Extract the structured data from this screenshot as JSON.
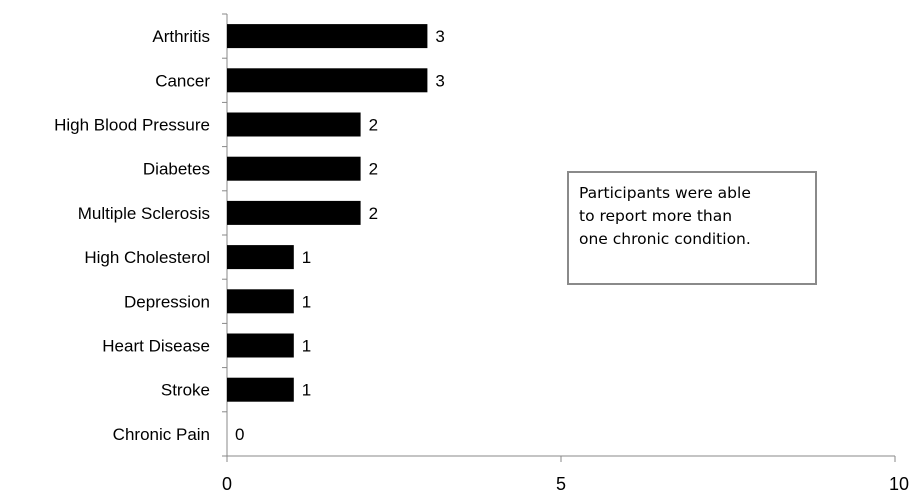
{
  "chart_data": {
    "type": "bar",
    "orientation": "horizontal",
    "categories": [
      "Arthritis",
      "Cancer",
      "High Blood Pressure",
      "Diabetes",
      "Multiple Sclerosis",
      "High Cholesterol",
      "Depression",
      "Heart Disease",
      "Stroke",
      "Chronic Pain"
    ],
    "values": [
      3,
      3,
      2,
      2,
      2,
      1,
      1,
      1,
      1,
      0
    ],
    "data_labels": [
      "3",
      "3",
      "2",
      "2",
      "2",
      "1",
      "1",
      "1",
      "1",
      "0"
    ],
    "xlim": [
      0,
      10
    ],
    "x_ticks": [
      "0",
      "5",
      "10"
    ],
    "grid": false,
    "bar_color": "#000000"
  },
  "annotation": {
    "lines": [
      "Participants were able",
      "to report more than",
      "one chronic condition."
    ]
  }
}
